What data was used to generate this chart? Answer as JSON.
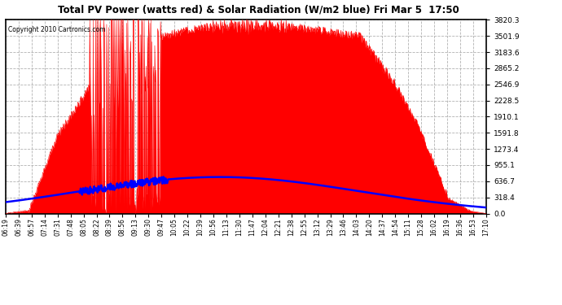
{
  "title": "Total PV Power (watts red) & Solar Radiation (W/m2 blue) Fri Mar 5  17:50",
  "copyright_text": "Copyright 2010 Cartronics.com",
  "background_color": "#ffffff",
  "plot_bg_color": "#ffffff",
  "y_max": 3820.3,
  "y_min": 0.0,
  "y_ticks": [
    0.0,
    318.4,
    636.7,
    955.1,
    1273.4,
    1591.8,
    1910.1,
    2228.5,
    2546.9,
    2865.2,
    3183.6,
    3501.9,
    3820.3
  ],
  "pv_color": "#ff0000",
  "solar_color": "#0000ff",
  "grid_color": "#aaaaaa",
  "x_tick_labels": [
    "06:19",
    "06:39",
    "06:57",
    "07:14",
    "07:31",
    "07:48",
    "08:05",
    "08:22",
    "08:39",
    "08:56",
    "09:13",
    "09:30",
    "09:47",
    "10:05",
    "10:22",
    "10:39",
    "10:56",
    "11:13",
    "11:30",
    "11:47",
    "12:04",
    "12:21",
    "12:38",
    "12:55",
    "13:12",
    "13:29",
    "13:46",
    "14:03",
    "14:20",
    "14:37",
    "14:54",
    "15:11",
    "15:28",
    "16:02",
    "16:19",
    "16:36",
    "16:53",
    "17:10"
  ]
}
